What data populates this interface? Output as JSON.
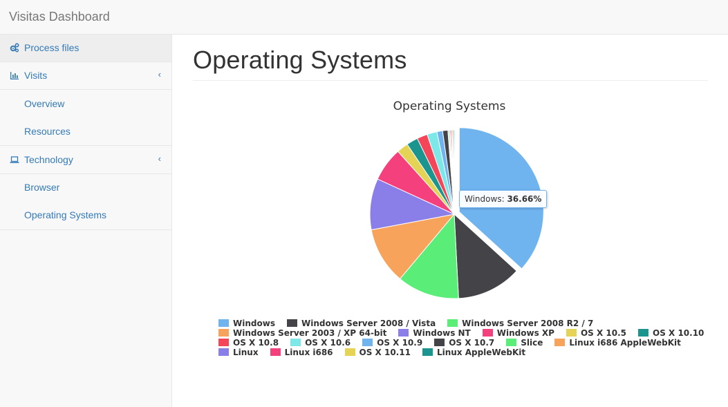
{
  "app": {
    "title": "Visitas Dashboard"
  },
  "sidebar": {
    "process_files": {
      "label": "Process files",
      "icon": "gears-icon"
    },
    "visits": {
      "label": "Visits",
      "icon": "bar-chart-icon",
      "caret": "‹",
      "items": [
        {
          "label": "Overview"
        },
        {
          "label": "Resources"
        }
      ]
    },
    "technology": {
      "label": "Technology",
      "icon": "laptop-icon",
      "caret": "‹",
      "items": [
        {
          "label": "Browser"
        },
        {
          "label": "Operating Systems"
        }
      ]
    }
  },
  "main": {
    "title": "Operating Systems"
  },
  "tooltip": {
    "label": "Windows: ",
    "value": "36.66%"
  },
  "chart_data": {
    "type": "pie",
    "title": "Operating Systems",
    "highlighted": "Windows",
    "legend_position": "bottom",
    "categories": [
      "Windows",
      "Windows Server 2008 / Vista",
      "Windows Server 2008 R2 / 7",
      "Windows Server 2003 / XP 64-bit",
      "Windows NT",
      "Windows XP",
      "OS X 10.5",
      "OS X 10.10",
      "OS X 10.8",
      "OS X 10.6",
      "OS X 10.9",
      "OS X 10.7",
      "Slice",
      "Linux i686 AppleWebKit",
      "Linux",
      "Linux i686",
      "OS X 10.11",
      "Linux AppleWebKit"
    ],
    "values": [
      36.66,
      12.4,
      11.9,
      10.9,
      9.8,
      6.5,
      2.2,
      2.2,
      2.0,
      1.9,
      1.1,
      1.0,
      0.2,
      0.2,
      0.2,
      0.2,
      0.2,
      0.2
    ],
    "colors": [
      "#6fb3ef",
      "#434348",
      "#5aed78",
      "#f7a35c",
      "#8a7ee8",
      "#f5407e",
      "#e4d354",
      "#1b958e",
      "#f54558",
      "#7ee8e8",
      "#6fb3ef",
      "#434348",
      "#5aed78",
      "#f7a35c",
      "#8a7ee8",
      "#f5407e",
      "#e4d354",
      "#1b958e"
    ],
    "legend_rows": [
      [
        0,
        1,
        2
      ],
      [
        3,
        4,
        5,
        6,
        7
      ],
      [
        8,
        9,
        10,
        11,
        12,
        13
      ],
      [
        14,
        15,
        16,
        17
      ]
    ]
  }
}
